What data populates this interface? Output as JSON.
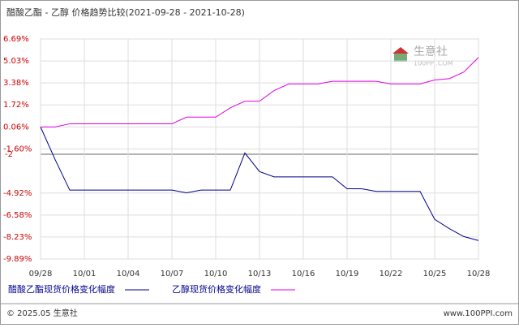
{
  "chart_data": {
    "type": "line",
    "title": "醋酸乙酯 - 乙醇 价格趋势比较(2021-09-28 - 2021-10-28)",
    "watermark": "生意社",
    "watermark_sub": "100PPI.COM",
    "footer_left": "© 2025.05 生意社",
    "footer_right": "www.100PPI.com",
    "categories": [
      "09/28",
      null,
      null,
      "10/01",
      null,
      null,
      "10/04",
      null,
      null,
      "10/07",
      null,
      null,
      "10/10",
      null,
      null,
      "10/13",
      null,
      null,
      "10/16",
      null,
      null,
      "10/19",
      null,
      null,
      "10/22",
      null,
      null,
      "10/25",
      null,
      null,
      "10/28"
    ],
    "series": [
      {
        "name": "醋酸乙酯现货价格变化幅度",
        "color": "#00008b",
        "values": [
          0.06,
          -2.4,
          -4.7,
          -4.7,
          -4.7,
          -4.7,
          -4.7,
          -4.7,
          -4.7,
          -4.7,
          -4.9,
          -4.7,
          -4.7,
          -4.7,
          -1.9,
          -3.3,
          -3.7,
          -3.7,
          -3.7,
          -3.7,
          -3.7,
          -4.6,
          -4.6,
          -4.8,
          -4.8,
          -4.8,
          -4.8,
          -6.9,
          -7.6,
          -8.2,
          -8.5
        ]
      },
      {
        "name": "乙醇现货价格变化幅度",
        "color": "#e000e0",
        "values": [
          0.06,
          0.06,
          0.3,
          0.3,
          0.3,
          0.3,
          0.3,
          0.3,
          0.3,
          0.3,
          0.8,
          0.8,
          0.8,
          1.5,
          2.0,
          2.0,
          2.8,
          3.3,
          3.3,
          3.3,
          3.5,
          3.5,
          3.5,
          3.5,
          3.3,
          3.3,
          3.3,
          3.6,
          3.7,
          4.2,
          5.3
        ]
      }
    ],
    "ylim": [
      -9.89,
      6.69
    ],
    "yticks": [
      {
        "value": 6.69,
        "label": "6.69%"
      },
      {
        "value": 5.03,
        "label": "5.03%"
      },
      {
        "value": 3.38,
        "label": "3.38%"
      },
      {
        "value": 1.72,
        "label": "1.72%"
      },
      {
        "value": 0.06,
        "label": "0.06%"
      },
      {
        "value": -1.6,
        "label": "-1.60%"
      },
      {
        "value": -4.92,
        "label": "-4.92%"
      },
      {
        "value": -6.58,
        "label": "-6.58%"
      },
      {
        "value": -8.23,
        "label": "-8.23%"
      },
      {
        "value": -9.89,
        "label": "-9.89%"
      }
    ],
    "reference_line": -2,
    "grid": true
  }
}
